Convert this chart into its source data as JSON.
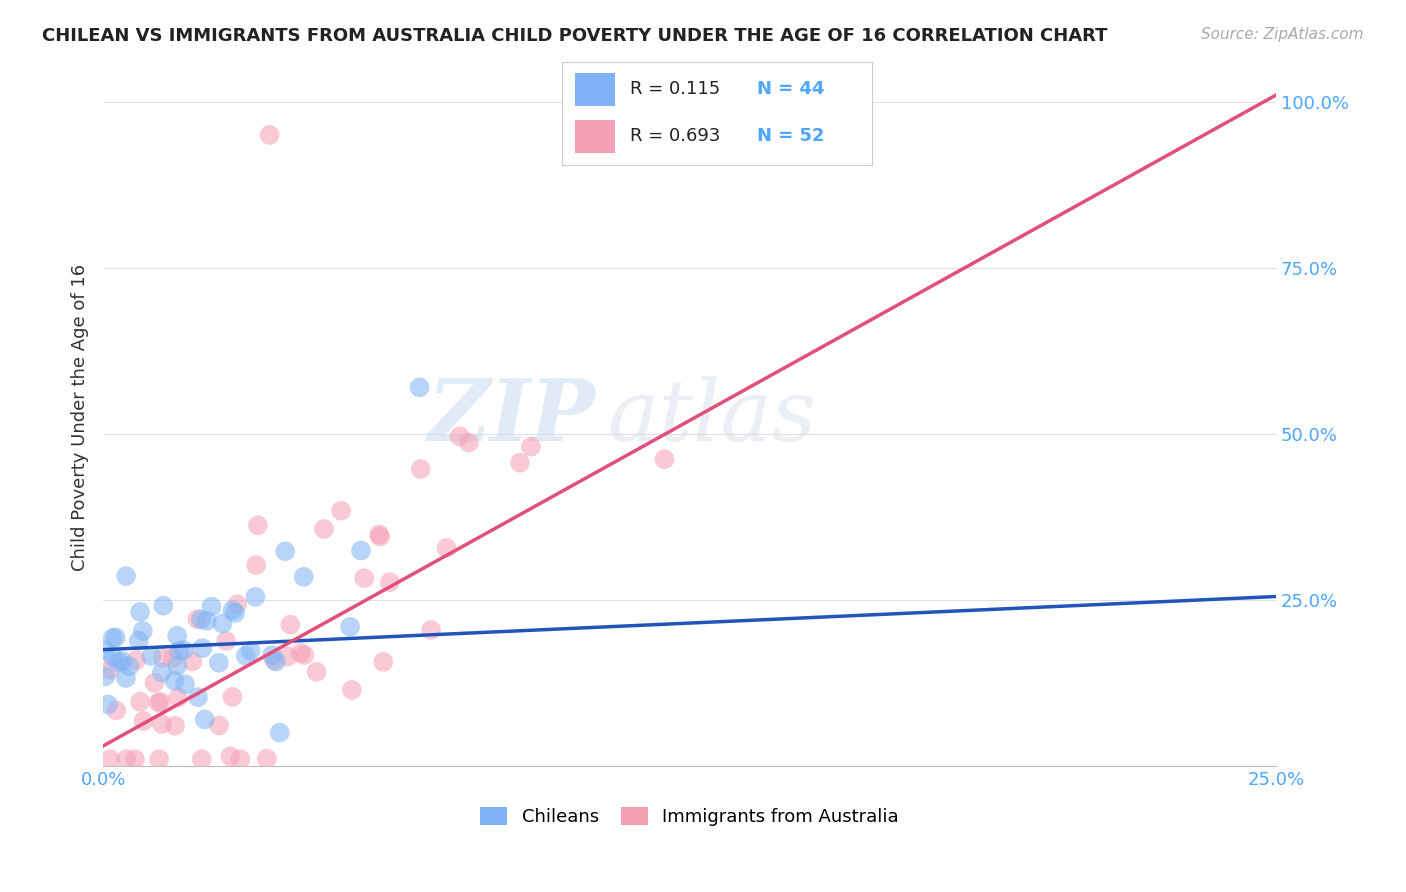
{
  "title": "CHILEAN VS IMMIGRANTS FROM AUSTRALIA CHILD POVERTY UNDER THE AGE OF 16 CORRELATION CHART",
  "source": "Source: ZipAtlas.com",
  "ylabel": "Child Poverty Under the Age of 16",
  "ytick_labels": [
    "100.0%",
    "75.0%",
    "50.0%",
    "25.0%"
  ],
  "ytick_positions": [
    1.0,
    0.75,
    0.5,
    0.25
  ],
  "watermark_zip": "ZIP",
  "watermark_atlas": "atlas",
  "legend_chilean_R": "0.115",
  "legend_chilean_N": "44",
  "legend_australia_R": "0.693",
  "legend_australia_N": "52",
  "chilean_color": "#7fb3f5",
  "australia_color": "#f5a0b5",
  "chilean_line_color": "#2255bb",
  "australia_line_color": "#e0507a",
  "xlim": [
    0.0,
    0.25
  ],
  "ylim": [
    0.0,
    1.05
  ],
  "background_color": "#ffffff",
  "grid_color": "#e0e0e0",
  "chilean_line_y0": 0.175,
  "chilean_line_y1": 0.255,
  "australia_line_y0": 0.03,
  "australia_line_y1": 1.01
}
